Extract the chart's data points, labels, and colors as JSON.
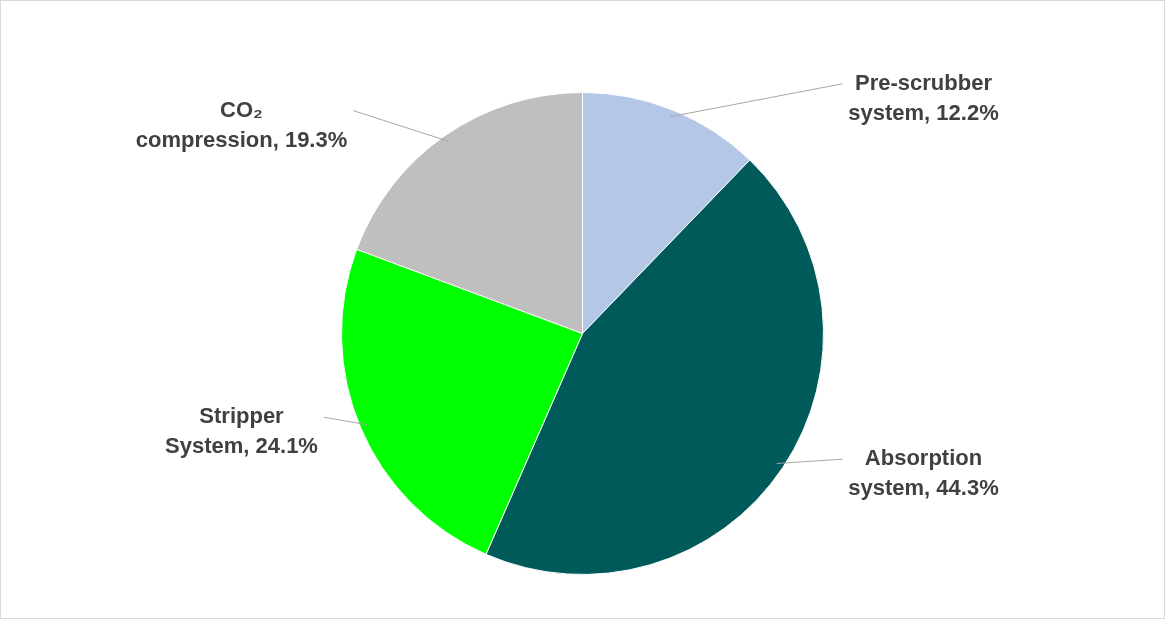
{
  "chart_data": {
    "type": "pie",
    "categories": [
      "Pre-scrubber system",
      "Absorption system",
      "Stripper System",
      "CO₂ compression"
    ],
    "values": [
      12.2,
      44.3,
      24.1,
      19.3
    ],
    "value_labels": [
      "12.2%",
      "44.3%",
      "24.1%",
      "19.3%"
    ],
    "colors": [
      "#b4c7e7",
      "#005a5a",
      "#00ff00",
      "#bfbfbf"
    ]
  }
}
